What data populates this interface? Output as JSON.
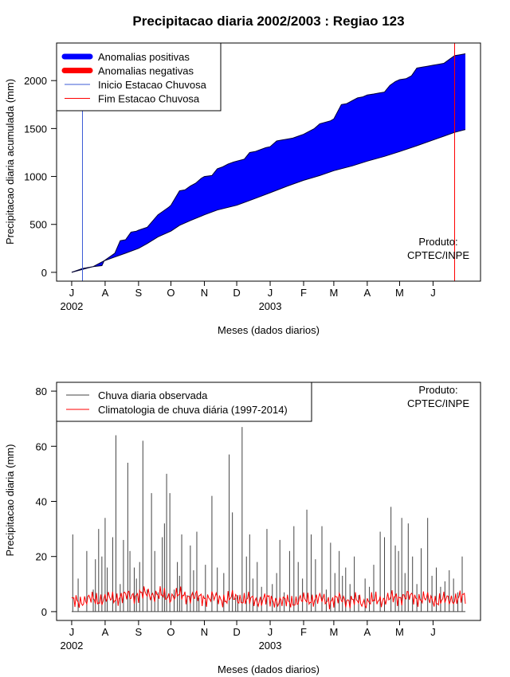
{
  "chart_data": [
    {
      "type": "area",
      "title": "Precipitacao diaria 2002/2003 : Regiao 123",
      "xlabel": "Meses (dados diarios)",
      "ylabel": "Precipitacao diaria acumulada (mm)",
      "ylim": [
        0,
        2300
      ],
      "yticks": [
        0,
        500,
        1000,
        1500,
        2000
      ],
      "month_labels": [
        "J",
        "A",
        "S",
        "O",
        "N",
        "D",
        "J",
        "F",
        "M",
        "A",
        "M",
        "J"
      ],
      "month_day_offsets": [
        0,
        31,
        62,
        92,
        123,
        153,
        184,
        215,
        243,
        274,
        304,
        335
      ],
      "year_labels": [
        {
          "text": "2002",
          "day": 0
        },
        {
          "text": "2003",
          "day": 184
        }
      ],
      "xlim_days": [
        -14,
        379
      ],
      "legend": [
        {
          "label": "Anomalias positivas",
          "color": "#0000ff",
          "style": "thick"
        },
        {
          "label": "Anomalias negativas",
          "color": "#ff0000",
          "style": "thick"
        },
        {
          "label": "Inicio Estacao Chuvosa",
          "color": "#3b5bd6",
          "style": "thin"
        },
        {
          "label": "Fim Estacao Chuvosa",
          "color": "#ff0000",
          "style": "thin"
        }
      ],
      "rainy_season_start_day": 10,
      "rainy_season_end_day": 355,
      "observed_cumulative": {
        "day": [
          0,
          10,
          20,
          28,
          30,
          40,
          45,
          50,
          55,
          60,
          62,
          70,
          80,
          90,
          92,
          100,
          105,
          110,
          115,
          120,
          123,
          130,
          135,
          140,
          145,
          150,
          153,
          160,
          165,
          170,
          175,
          180,
          184,
          190,
          195,
          200,
          205,
          210,
          215,
          225,
          230,
          240,
          243,
          250,
          255,
          260,
          265,
          270,
          274,
          280,
          285,
          290,
          295,
          300,
          304,
          310,
          315,
          320,
          325,
          330,
          335,
          340,
          345,
          350,
          355,
          360,
          365
        ],
        "value": [
          0,
          40,
          60,
          70,
          120,
          200,
          330,
          340,
          420,
          430,
          440,
          470,
          600,
          680,
          700,
          850,
          860,
          900,
          930,
          980,
          1000,
          1010,
          1080,
          1100,
          1130,
          1150,
          1160,
          1180,
          1250,
          1260,
          1280,
          1300,
          1310,
          1370,
          1380,
          1390,
          1400,
          1420,
          1440,
          1500,
          1550,
          1580,
          1600,
          1750,
          1760,
          1790,
          1820,
          1830,
          1850,
          1860,
          1870,
          1880,
          1950,
          1990,
          2010,
          2020,
          2050,
          2130,
          2140,
          2150,
          2160,
          2170,
          2180,
          2220,
          2260,
          2270,
          2280
        ]
      },
      "climatology_cumulative": {
        "day": [
          0,
          10,
          20,
          30,
          40,
          50,
          62,
          70,
          80,
          92,
          100,
          110,
          123,
          135,
          153,
          170,
          184,
          200,
          215,
          230,
          243,
          260,
          274,
          290,
          304,
          320,
          335,
          345,
          355,
          365
        ],
        "value": [
          0,
          30,
          60,
          120,
          160,
          200,
          250,
          300,
          370,
          430,
          490,
          540,
          600,
          650,
          700,
          770,
          830,
          900,
          960,
          1010,
          1060,
          1110,
          1160,
          1210,
          1260,
          1320,
          1380,
          1420,
          1460,
          1490
        ]
      },
      "annotation": "Produto:\nCPTEC/INPE"
    },
    {
      "type": "line",
      "title": "",
      "xlabel": "Meses (dados diarios)",
      "ylabel": "Precipitacao diaria (mm)",
      "ylim": [
        0,
        80
      ],
      "yticks": [
        0,
        20,
        40,
        60,
        80
      ],
      "month_labels": [
        "J",
        "A",
        "S",
        "O",
        "N",
        "D",
        "J",
        "F",
        "M",
        "A",
        "M",
        "J"
      ],
      "month_day_offsets": [
        0,
        31,
        62,
        92,
        123,
        153,
        184,
        215,
        243,
        274,
        304,
        335
      ],
      "year_labels": [
        {
          "text": "2002",
          "day": 0
        },
        {
          "text": "2003",
          "day": 184
        }
      ],
      "xlim_days": [
        -14,
        379
      ],
      "legend": [
        {
          "label": "Chuva diaria observada",
          "color": "#444444"
        },
        {
          "label": "Climatologia de chuva diária (1997-2014)",
          "color": "#ff0000"
        }
      ],
      "series": [
        {
          "name": "Chuva diaria observada",
          "color": "#444444",
          "spikes": {
            "day": [
              1,
              6,
              14,
              20,
              22,
              25,
              28,
              31,
              33,
              38,
              41,
              45,
              48,
              52,
              54,
              58,
              60,
              63,
              66,
              70,
              74,
              77,
              80,
              84,
              86,
              88,
              91,
              95,
              98,
              100,
              102,
              107,
              110,
              113,
              116,
              118,
              124,
              130,
              135,
              141,
              146,
              149,
              152,
              154,
              158,
              162,
              165,
              168,
              172,
              176,
              181,
              186,
              190,
              193,
              197,
              202,
              206,
              210,
              214,
              218,
              222,
              226,
              232,
              236,
              240,
              244,
              248,
              251,
              254,
              258,
              262,
              266,
              272,
              276,
              280,
              286,
              290,
              296,
              300,
              303,
              306,
              309,
              312,
              316,
              320,
              324,
              330,
              334,
              338,
              342,
              346,
              350,
              354,
              358,
              362
            ],
            "value": [
              28,
              12,
              22,
              8,
              19,
              30,
              20,
              34,
              16,
              27,
              64,
              10,
              26,
              54,
              22,
              16,
              12,
              18,
              62,
              8,
              43,
              22,
              7,
              27,
              32,
              50,
              43,
              8,
              18,
              13,
              28,
              6,
              24,
              15,
              29,
              5,
              17,
              42,
              16,
              14,
              57,
              36,
              5,
              6,
              67,
              20,
              28,
              12,
              18,
              9,
              30,
              10,
              14,
              26,
              7,
              22,
              31,
              18,
              12,
              37,
              28,
              19,
              31,
              8,
              25,
              14,
              22,
              13,
              16,
              10,
              20,
              6,
              12,
              9,
              17,
              29,
              27,
              38,
              24,
              22,
              34,
              14,
              32,
              20,
              10,
              23,
              34,
              13,
              16,
              9,
              11,
              15,
              12,
              7,
              20
            ]
          }
        },
        {
          "name": "Climatologia de chuva diária (1997-2014)",
          "color": "#ff0000",
          "line": {
            "day": [
              0,
              10,
              20,
              30,
              40,
              50,
              60,
              62,
              70,
              80,
              90,
              100,
              110,
              120,
              130,
              140,
              150,
              160,
              170,
              180,
              184,
              190,
              200,
              210,
              220,
              230,
              240,
              250,
              260,
              270,
              280,
              290,
              300,
              310,
              320,
              330,
              340,
              350,
              360,
              365
            ],
            "value": [
              3.5,
              4,
              4.5,
              4.5,
              5,
              5.5,
              6,
              6,
              6.5,
              6,
              5.5,
              6,
              5.5,
              5,
              5,
              4.5,
              5,
              4.5,
              4,
              4.5,
              4,
              4,
              3.5,
              4,
              4.5,
              4.5,
              4,
              4.5,
              4,
              3.5,
              4,
              4.5,
              5,
              5.5,
              5,
              4.5,
              4,
              4.5,
              5,
              5
            ]
          }
        }
      ],
      "annotation": "Produto:\nCPTEC/INPE"
    }
  ]
}
